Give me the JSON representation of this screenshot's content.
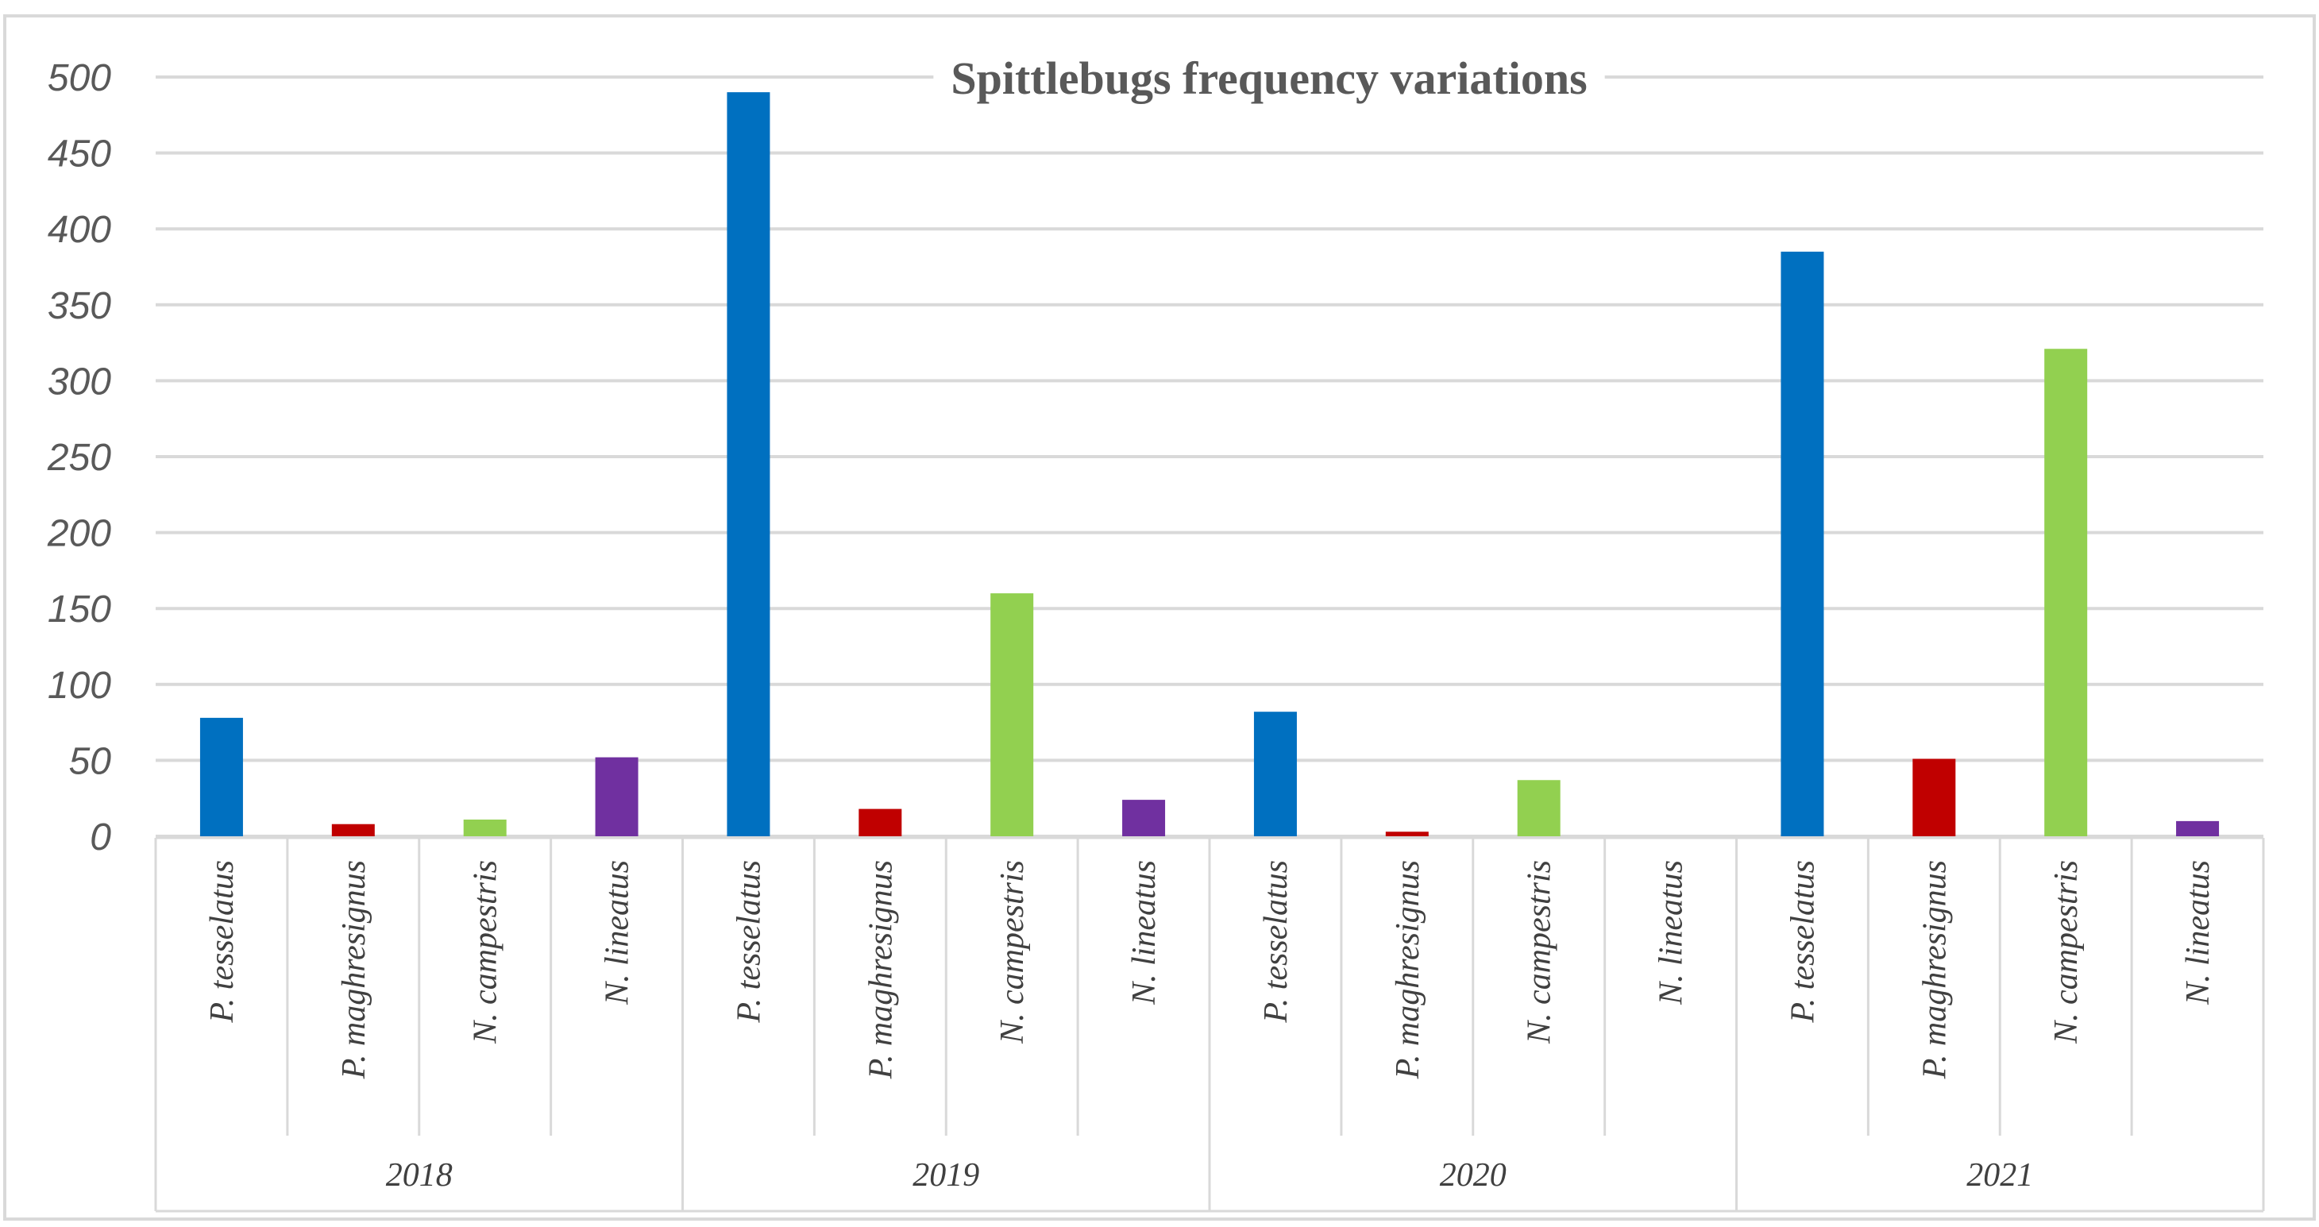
{
  "chart_data": {
    "type": "bar",
    "title": "Spittlebugs frequency variations",
    "xlabel": "",
    "ylabel": "",
    "ylim": [
      0,
      500
    ],
    "ytick_step": 50,
    "ytick_labels": [
      "0",
      "50",
      "100",
      "150",
      "200",
      "250",
      "300",
      "350",
      "400",
      "450",
      "500"
    ],
    "grid": true,
    "groups": [
      "2018",
      "2019",
      "2020",
      "2021"
    ],
    "categories": [
      "P. tesselatus",
      "P. maghresignus",
      "N. campestris",
      "N. lineatus"
    ],
    "series": [
      {
        "name": "P. tesselatus",
        "color": "#0070c0",
        "values": [
          78,
          490,
          82,
          385
        ]
      },
      {
        "name": "P. maghresignus",
        "color": "#c00000",
        "values": [
          8,
          18,
          3,
          51
        ]
      },
      {
        "name": "N. campestris",
        "color": "#92d050",
        "values": [
          11,
          160,
          37,
          321
        ]
      },
      {
        "name": "N. lineatus",
        "color": "#7030a0",
        "values": [
          52,
          24,
          0,
          10
        ]
      }
    ]
  }
}
